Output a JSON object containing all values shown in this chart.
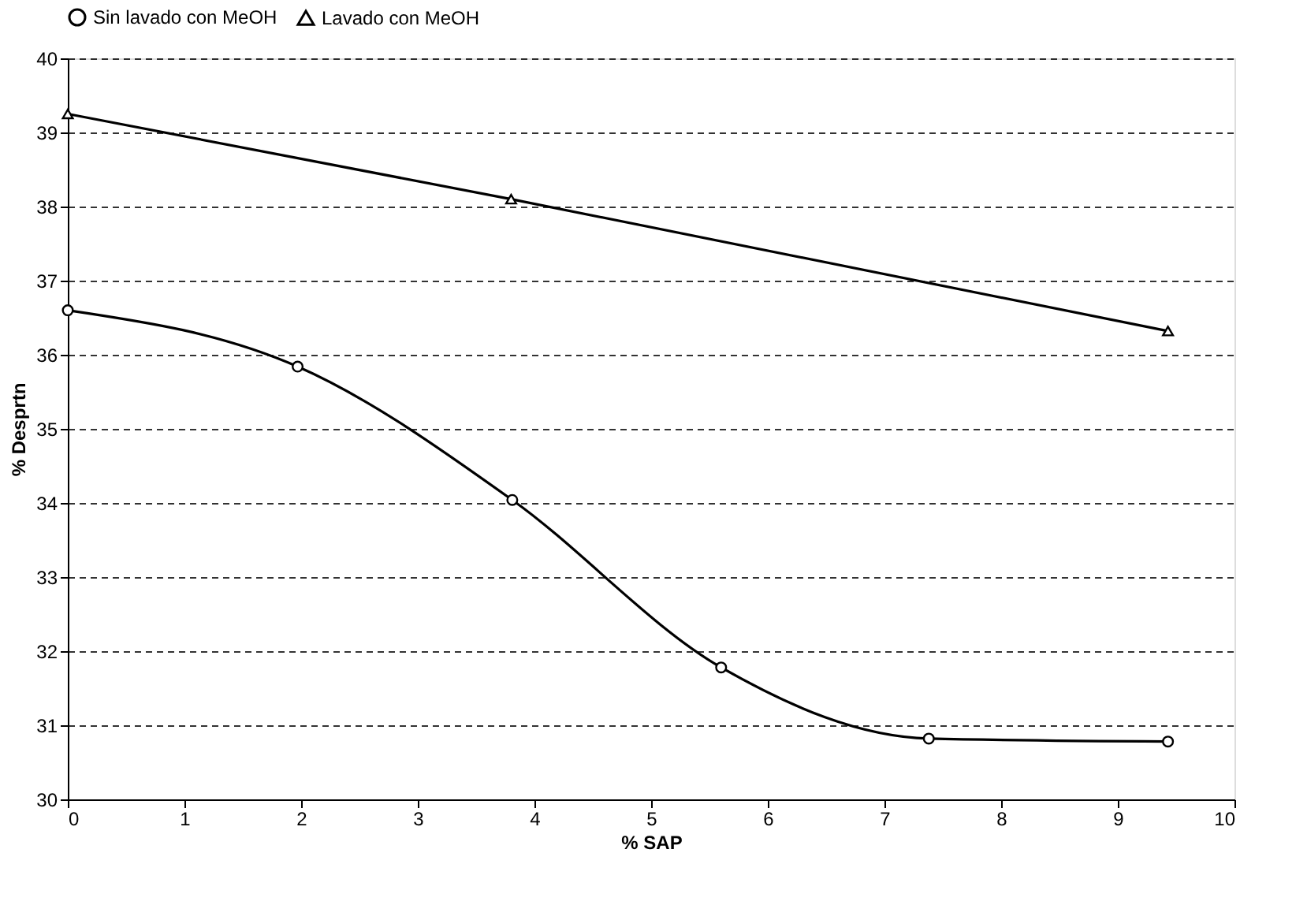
{
  "chart_data": {
    "type": "line",
    "xlabel": "% SAP",
    "ylabel": "% Desprtn",
    "xlim": [
      0,
      10
    ],
    "ylim": [
      30,
      40
    ],
    "xticks": [
      0,
      1,
      2,
      3,
      4,
      5,
      6,
      7,
      8,
      9,
      10
    ],
    "yticks": [
      30,
      31,
      32,
      33,
      34,
      35,
      36,
      37,
      38,
      39,
      40
    ],
    "grid": "y",
    "legend": "top",
    "line_style": "solid",
    "series": [
      {
        "name": "Sin lavado con MeOH",
        "color": "#000000",
        "marker": "circle",
        "x": [
          0,
          1.97,
          3.81,
          5.6,
          7.38,
          9.43
        ],
        "values": [
          36.6,
          35.84,
          34.04,
          31.78,
          30.82,
          30.78
        ]
      },
      {
        "name": "Lavado con MeOH",
        "color": "#000000",
        "marker": "triangle",
        "x": [
          0,
          3.8,
          9.43
        ],
        "values": [
          39.25,
          38.1,
          36.32
        ]
      }
    ]
  }
}
